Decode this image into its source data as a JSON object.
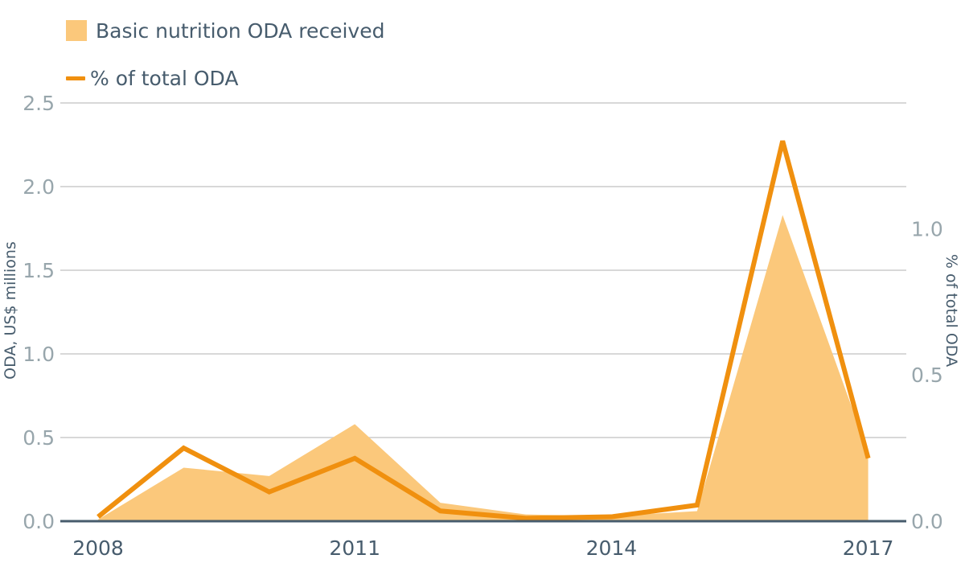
{
  "colors": {
    "area": "#fbc87b",
    "line": "#f0900f",
    "grid": "#cccccc",
    "baseline": "#475c6d",
    "tick": "#98a6ac",
    "text": "#475c6d"
  },
  "legend": {
    "area_label": "Basic nutrition ODA received",
    "line_label": "% of total ODA"
  },
  "chart_data": {
    "type": "area",
    "x": [
      2008,
      2009,
      2010,
      2011,
      2012,
      2013,
      2014,
      2015,
      2016,
      2017
    ],
    "x_tick_labels": [
      "2008",
      "2011",
      "2014",
      "2017"
    ],
    "series": [
      {
        "name": "Basic nutrition ODA received",
        "type": "area",
        "axis": "left",
        "values": [
          0.01,
          0.32,
          0.27,
          0.58,
          0.11,
          0.04,
          0.03,
          0.06,
          1.83,
          0.41
        ]
      },
      {
        "name": "% of total ODA",
        "type": "line",
        "axis": "right",
        "values": [
          0.015,
          0.25,
          0.1,
          0.215,
          0.035,
          0.01,
          0.015,
          0.055,
          1.3,
          0.215
        ]
      }
    ],
    "left_axis": {
      "label": "ODA, US$ millions",
      "ylim": [
        0,
        2.5
      ],
      "ticks": [
        "0.0",
        "0.5",
        "1.0",
        "1.5",
        "2.0",
        "2.5"
      ]
    },
    "right_axis": {
      "label": "% of total ODA",
      "ylim": [
        0,
        1.43
      ],
      "ticks": [
        "0.0",
        "0.5",
        "1.0"
      ]
    },
    "grid": true,
    "legend_position": "top-left"
  }
}
